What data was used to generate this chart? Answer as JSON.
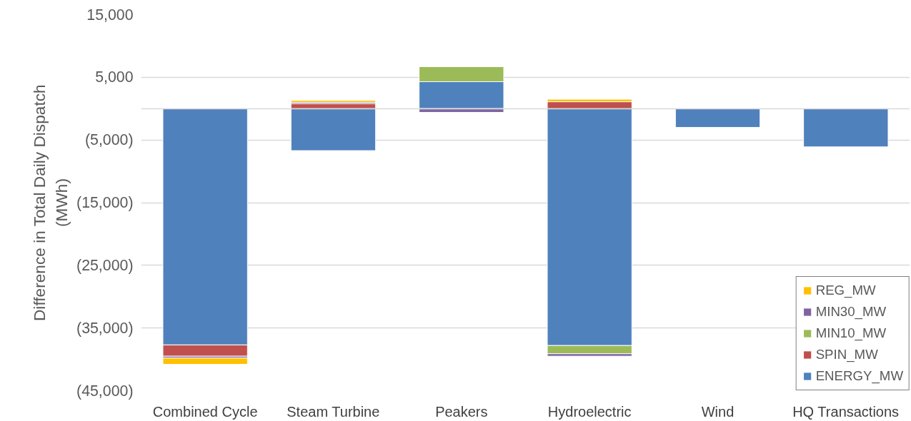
{
  "chart_data": {
    "type": "bar",
    "stacked": true,
    "ylabel": "Difference in Total Daily Dispatch\n(MWh)",
    "categories": [
      "Combined Cycle",
      "Steam Turbine",
      "Peakers",
      "Hydroelectric",
      "Wind",
      "HQ Transactions"
    ],
    "series": [
      {
        "name": "ENERGY_MW",
        "color": "#4f81bd",
        "values": [
          -37700,
          -6700,
          4300,
          -37800,
          -3000,
          -6100
        ]
      },
      {
        "name": "SPIN_MW",
        "color": "#c0504d",
        "values": [
          -1800,
          800,
          0,
          1100,
          0,
          0
        ]
      },
      {
        "name": "MIN10_MW",
        "color": "#9bbb59",
        "values": [
          0,
          0,
          2400,
          -1300,
          0,
          0
        ]
      },
      {
        "name": "MIN30_MW",
        "color": "#8064a2",
        "values": [
          -300,
          200,
          -600,
          -400,
          0,
          0
        ]
      },
      {
        "name": "REG_MW",
        "color": "#ffc000",
        "values": [
          -1000,
          300,
          0,
          400,
          0,
          0
        ]
      }
    ],
    "ylim": [
      -45000,
      15000
    ],
    "yticks": [
      {
        "value": -45000,
        "label": "(45,000)"
      },
      {
        "value": -35000,
        "label": "(35,000)"
      },
      {
        "value": -25000,
        "label": "(25,000)"
      },
      {
        "value": -15000,
        "label": "(15,000)"
      },
      {
        "value": -5000,
        "label": "(5,000)"
      },
      {
        "value": 5000,
        "label": "5,000"
      },
      {
        "value": 15000,
        "label": "15,000"
      }
    ],
    "grid": "y",
    "legend": "bottom right"
  }
}
